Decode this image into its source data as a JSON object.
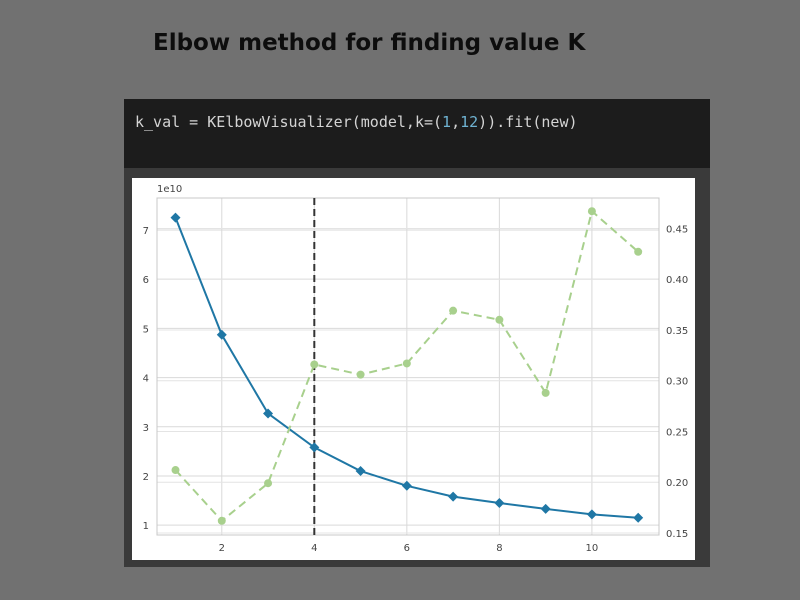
{
  "slide": {
    "title": "Elbow method for finding value K"
  },
  "code": {
    "prefix": "k_val = KElbowVisualizer(model,k=(",
    "num1": "1",
    "sep": ",",
    "num2": "12",
    "suffix": ")).fit(new)"
  },
  "chart_data": {
    "type": "line",
    "x": [
      1,
      2,
      3,
      4,
      5,
      6,
      7,
      8,
      9,
      10,
      11
    ],
    "series": [
      {
        "name": "",
        "axis": "left",
        "style": "solid",
        "marker": "diamond",
        "color": "#1f77a5",
        "values": [
          7.25,
          4.87,
          3.27,
          2.58,
          2.1,
          1.8,
          1.58,
          1.45,
          1.33,
          1.22,
          1.15
        ]
      },
      {
        "name": "",
        "axis": "right",
        "style": "dashed",
        "marker": "circle",
        "color": "#a8d08d",
        "values": [
          0.212,
          0.162,
          0.199,
          0.316,
          0.306,
          0.317,
          0.369,
          0.36,
          0.288,
          0.467,
          0.427
        ]
      }
    ],
    "elbow_k": 4,
    "exponent_label": "1e10",
    "xlim": [
      0.6,
      11.45
    ],
    "ylim_left": [
      0.8,
      7.65
    ],
    "ylim_right": [
      0.148,
      0.48
    ],
    "x_ticks": [
      2,
      4,
      6,
      8,
      10
    ],
    "y_left_ticks": [
      1,
      2,
      3,
      4,
      5,
      6,
      7
    ],
    "y_right_ticks": [
      "0.15",
      "0.20",
      "0.25",
      "0.30",
      "0.35",
      "0.40",
      "0.45"
    ],
    "grid": true,
    "legend": "none"
  }
}
